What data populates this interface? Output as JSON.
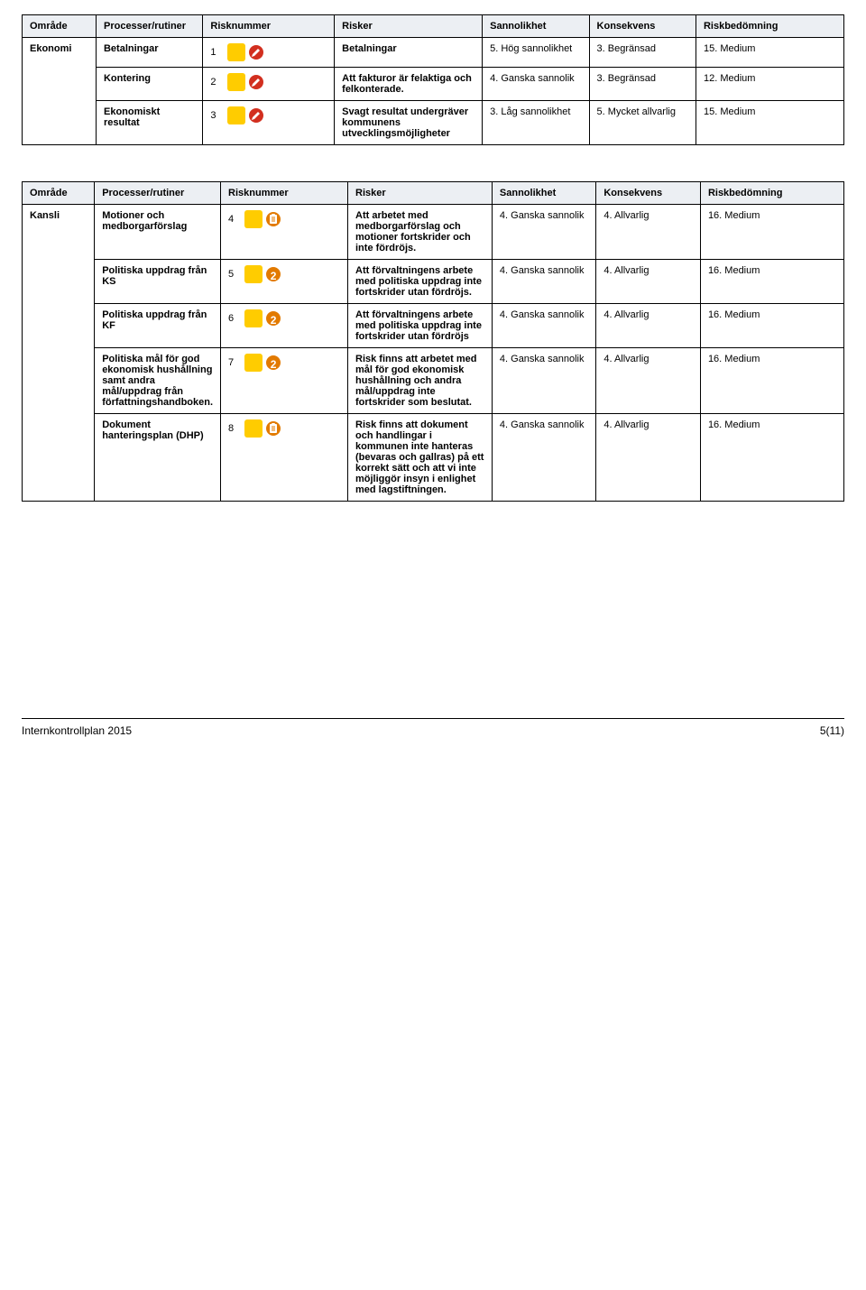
{
  "colors": {
    "yellow": "#ffcc00",
    "red": "#d22f1f",
    "orange": "#e27a00",
    "white": "#ffffff"
  },
  "headers": {
    "omrade": "Område",
    "process": "Processer/rutiner",
    "risknummer": "Risknummer",
    "risker": "Risker",
    "sannolikhet": "Sannolikhet",
    "konsekvens": "Konsekvens",
    "riskbedomning": "Riskbedömning"
  },
  "table1": {
    "area": "Ekonomi",
    "rows": [
      {
        "process": "Betalningar",
        "num": "1",
        "badge_shape": "sq",
        "badge_color": "#ffcc00",
        "icon_type": "pencil",
        "icon_bg": "#d22f1f",
        "risk": "Betalningar",
        "sannolikhet": "5. Hög sannolikhet",
        "konsekvens": "3. Begränsad",
        "bedomning": "15. Medium"
      },
      {
        "process": "Kontering",
        "num": "2",
        "badge_shape": "sq",
        "badge_color": "#ffcc00",
        "icon_type": "pencil",
        "icon_bg": "#d22f1f",
        "risk": "Att fakturor är felaktiga och felkonterade.",
        "sannolikhet": "4. Ganska sannolik",
        "konsekvens": "3. Begränsad",
        "bedomning": "12. Medium"
      },
      {
        "process": "Ekonomiskt resultat",
        "num": "3",
        "badge_shape": "sq",
        "badge_color": "#ffcc00",
        "icon_type": "pencil",
        "icon_bg": "#d22f1f",
        "risk": "Svagt resultat undergräver kommunens utvecklingsmöjligheter",
        "sannolikhet": "3. Låg sannolikhet",
        "konsekvens": "5. Mycket allvarlig",
        "bedomning": "15. Medium"
      }
    ]
  },
  "table2": {
    "area": "Kansli",
    "rows": [
      {
        "process": "Motioner och medborgarförslag",
        "num": "4",
        "badge_shape": "sq",
        "badge_color": "#ffcc00",
        "icon_type": "clipboard",
        "icon_bg": "#e27a00",
        "risk": "Att arbetet med medborgarförslag och motioner fortskrider och inte fördröjs.",
        "sannolikhet": "4. Ganska sannolik",
        "konsekvens": "4. Allvarlig",
        "bedomning": "16. Medium"
      },
      {
        "process": "Politiska uppdrag från KS",
        "num": "5",
        "badge_shape": "sq",
        "badge_color": "#ffcc00",
        "icon_type": "number",
        "icon_bg": "#e27a00",
        "icon_label": "2",
        "risk": "Att förvaltningens arbete med politiska uppdrag inte fortskrider utan fördröjs.",
        "sannolikhet": "4. Ganska sannolik",
        "konsekvens": "4. Allvarlig",
        "bedomning": "16. Medium"
      },
      {
        "process": "Politiska uppdrag från KF",
        "num": "6",
        "badge_shape": "sq",
        "badge_color": "#ffcc00",
        "icon_type": "number",
        "icon_bg": "#e27a00",
        "icon_label": "2",
        "risk": "Att förvaltningens arbete med politiska uppdrag inte fortskrider utan fördröjs",
        "sannolikhet": "4. Ganska sannolik",
        "konsekvens": "4. Allvarlig",
        "bedomning": "16. Medium"
      },
      {
        "process": "Politiska mål för god ekonomisk hushållning samt andra mål/uppdrag från författningshandboken.",
        "num": "7",
        "badge_shape": "sq",
        "badge_color": "#ffcc00",
        "icon_type": "number",
        "icon_bg": "#e27a00",
        "icon_label": "2",
        "risk": "Risk finns att arbetet med mål för god ekonomisk hushållning och andra mål/uppdrag inte fortskrider som beslutat.",
        "sannolikhet": "4. Ganska sannolik",
        "konsekvens": "4. Allvarlig",
        "bedomning": "16. Medium"
      },
      {
        "process": "Dokument hanteringsplan (DHP)",
        "num": "8",
        "badge_shape": "sq",
        "badge_color": "#ffcc00",
        "icon_type": "clipboard",
        "icon_bg": "#e27a00",
        "risk": "Risk finns att dokument och handlingar i kommunen inte hanteras (bevaras och gallras) på ett korrekt sätt och att vi inte möjliggör insyn i enlighet med lagstiftningen.",
        "sannolikhet": "4. Ganska sannolik",
        "konsekvens": "4. Allvarlig",
        "bedomning": "16. Medium"
      }
    ]
  },
  "footer": {
    "title": "Internkontrollplan 2015",
    "page": "5(11)"
  }
}
